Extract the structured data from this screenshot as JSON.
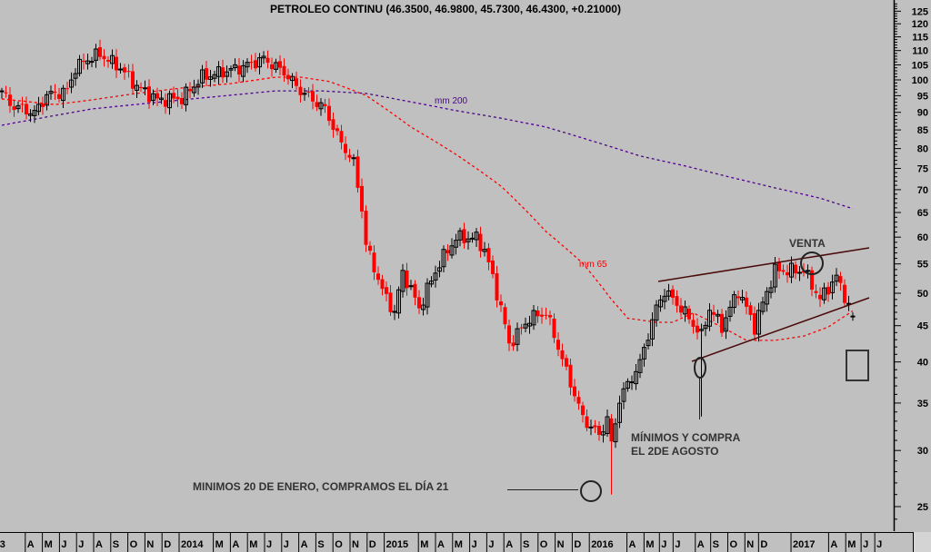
{
  "chart_data": {
    "type": "candlestick",
    "title": "PETROLEO CONTINU (46.3500, 46.9800, 45.7300, 46.4300, +0.21000)",
    "y_scale": "log",
    "ylim": [
      22,
      128
    ],
    "y_ticks": [
      125,
      120,
      115,
      110,
      105,
      100,
      95,
      90,
      85,
      80,
      75,
      70,
      65,
      60,
      55,
      50,
      45,
      40,
      35,
      30,
      25
    ],
    "x_unit": "weeks",
    "x_labels": [
      {
        "label": "3",
        "month": 1.4
      },
      {
        "label": "A",
        "month": 3
      },
      {
        "label": "M",
        "month": 4
      },
      {
        "label": "J",
        "month": 5
      },
      {
        "label": "J",
        "month": 6
      },
      {
        "label": "A",
        "month": 7
      },
      {
        "label": "S",
        "month": 8
      },
      {
        "label": "O",
        "month": 9
      },
      {
        "label": "N",
        "month": 10
      },
      {
        "label": "D",
        "month": 11
      },
      {
        "label": "2014",
        "month": 12
      },
      {
        "label": "M",
        "month": 14
      },
      {
        "label": "A",
        "month": 15
      },
      {
        "label": "M",
        "month": 16
      },
      {
        "label": "J",
        "month": 17
      },
      {
        "label": "J",
        "month": 18
      },
      {
        "label": "A",
        "month": 19
      },
      {
        "label": "S",
        "month": 20
      },
      {
        "label": "O",
        "month": 21
      },
      {
        "label": "N",
        "month": 22
      },
      {
        "label": "D",
        "month": 23
      },
      {
        "label": "2015",
        "month": 24
      },
      {
        "label": "M",
        "month": 26
      },
      {
        "label": "A",
        "month": 27
      },
      {
        "label": "M",
        "month": 28
      },
      {
        "label": "J",
        "month": 29
      },
      {
        "label": "J",
        "month": 30
      },
      {
        "label": "A",
        "month": 31
      },
      {
        "label": "S",
        "month": 32
      },
      {
        "label": "O",
        "month": 33
      },
      {
        "label": "N",
        "month": 34
      },
      {
        "label": "D",
        "month": 35
      },
      {
        "label": "2016",
        "month": 36
      },
      {
        "label": "A",
        "month": 38.2
      },
      {
        "label": "M",
        "month": 39.2
      },
      {
        "label": "J",
        "month": 40.1
      },
      {
        "label": "J",
        "month": 40.9
      },
      {
        "label": "A",
        "month": 42.2
      },
      {
        "label": "S",
        "month": 43.1
      },
      {
        "label": "O",
        "month": 44.1
      },
      {
        "label": "N",
        "month": 45.1
      },
      {
        "label": "D",
        "month": 45.9
      },
      {
        "label": "2017",
        "month": 47.8
      },
      {
        "label": "A",
        "month": 50
      },
      {
        "label": "M",
        "month": 51
      },
      {
        "label": "J",
        "month": 51.9
      },
      {
        "label": "J",
        "month": 52.7
      }
    ],
    "close_path": [
      [
        0,
        96.5
      ],
      [
        2,
        92.3
      ],
      [
        8,
        89.7
      ],
      [
        11,
        95.1
      ],
      [
        16,
        96.5
      ],
      [
        18,
        103.9
      ],
      [
        21,
        107
      ],
      [
        24,
        108.6
      ],
      [
        29,
        103.9
      ],
      [
        33,
        97.9
      ],
      [
        38,
        93.7
      ],
      [
        44,
        94.1
      ],
      [
        49,
        100.9
      ],
      [
        58,
        103.9
      ],
      [
        64,
        107
      ],
      [
        69,
        102.5
      ],
      [
        73,
        96.5
      ],
      [
        79,
        91
      ],
      [
        82,
        83.3
      ],
      [
        86,
        76.2
      ],
      [
        88,
        65.8
      ],
      [
        89,
        58.4
      ],
      [
        93,
        50.4
      ],
      [
        96,
        46.9
      ],
      [
        98,
        53.5
      ],
      [
        102,
        47.6
      ],
      [
        107,
        55.1
      ],
      [
        111,
        59.8
      ],
      [
        116,
        59.8
      ],
      [
        118,
        57.5
      ],
      [
        122,
        47.6
      ],
      [
        124,
        42.3
      ],
      [
        129,
        46.1
      ],
      [
        133,
        46.9
      ],
      [
        138,
        38.7
      ],
      [
        142,
        33.3
      ],
      [
        146,
        31.5
      ],
      [
        148,
        33.3
      ],
      [
        149,
        30.5
      ],
      [
        151,
        35.4
      ],
      [
        156,
        39.8
      ],
      [
        160,
        47.6
      ],
      [
        162,
        50.4
      ],
      [
        167,
        46.9
      ],
      [
        171,
        43.5
      ],
      [
        173,
        47.6
      ],
      [
        176,
        44.8
      ],
      [
        180,
        50.4
      ],
      [
        184,
        44.8
      ],
      [
        189,
        53.8
      ],
      [
        196,
        53.8
      ],
      [
        200,
        49.0
      ],
      [
        204,
        52.7
      ],
      [
        208,
        46.43
      ]
    ],
    "last_bar": {
      "open": 46.35,
      "high": 46.98,
      "low": 45.73,
      "close": 46.43,
      "change": 0.21
    },
    "series": [
      {
        "name": "mm 200",
        "color": "#500090",
        "points": [
          [
            0,
            86.3
          ],
          [
            22,
            91.0
          ],
          [
            44,
            93.7
          ],
          [
            67,
            96.5
          ],
          [
            78,
            96.5
          ],
          [
            89,
            95.7
          ],
          [
            100,
            93.1
          ],
          [
            111,
            90.5
          ],
          [
            122,
            88.3
          ],
          [
            133,
            85.8
          ],
          [
            144,
            82.1
          ],
          [
            156,
            78.1
          ],
          [
            167,
            75.6
          ],
          [
            178,
            72.9
          ],
          [
            189,
            70.4
          ],
          [
            200,
            68.1
          ],
          [
            208,
            65.8
          ]
        ]
      },
      {
        "name": "mm 65",
        "color": "#ff0000",
        "points": [
          [
            0,
            94
          ],
          [
            13,
            92.3
          ],
          [
            22,
            93.7
          ],
          [
            33,
            95.7
          ],
          [
            44,
            97.4
          ],
          [
            56,
            98.8
          ],
          [
            67,
            100.9
          ],
          [
            73,
            100.9
          ],
          [
            80,
            99.5
          ],
          [
            89,
            95.1
          ],
          [
            100,
            85.8
          ],
          [
            111,
            78.5
          ],
          [
            122,
            70.8
          ],
          [
            133,
            61.1
          ],
          [
            142,
            55.1
          ],
          [
            149,
            49.0
          ],
          [
            153,
            46.1
          ],
          [
            160,
            45.5
          ],
          [
            164,
            45.5
          ],
          [
            169,
            46.9
          ],
          [
            176,
            44.8
          ],
          [
            182,
            42.9
          ],
          [
            189,
            42.9
          ],
          [
            196,
            43.5
          ],
          [
            202,
            44.8
          ],
          [
            208,
            47.2
          ]
        ]
      }
    ],
    "colors": {
      "up": "#000000",
      "down": "#ff0000",
      "background": "#c0c0c0",
      "trendline": "#4a0a0a"
    },
    "annotations": {
      "venta": "VENTA",
      "minimos_agosto_1": "MÍNIMOS Y COMPRA",
      "minimos_agosto_2": "EL 2DE AGOSTO",
      "minimos_enero": "MINIMOS 20 DE ENERO, COMPRAMOS EL DÍA 21",
      "mm200_label": "mm 200",
      "mm65_label": "mm 65"
    }
  }
}
